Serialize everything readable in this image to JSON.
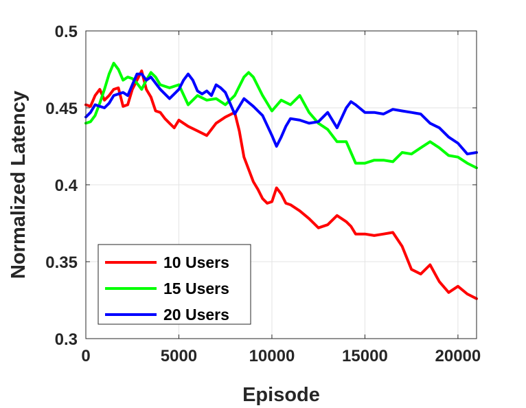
{
  "chart_data": {
    "type": "line",
    "xlabel": "Episode",
    "ylabel": "Normalized Latency",
    "xlim": [
      0,
      21000
    ],
    "ylim": [
      0.3,
      0.5
    ],
    "xticks": [
      0,
      5000,
      10000,
      15000,
      20000
    ],
    "yticks": [
      0.3,
      0.35,
      0.4,
      0.45,
      0.5
    ],
    "xtick_labels": [
      "0",
      "5000",
      "10000",
      "15000",
      "20000"
    ],
    "ytick_labels": [
      "0.3",
      "0.35",
      "0.4",
      "0.45",
      "0.5"
    ],
    "grid": true,
    "legend_position": "bottom-left",
    "series": [
      {
        "name": "10 Users",
        "color": "#ff0000",
        "x": [
          0,
          250,
          500,
          750,
          1000,
          1250,
          1500,
          1750,
          2000,
          2250,
          2500,
          2750,
          3000,
          3250,
          3500,
          3750,
          4000,
          4250,
          4500,
          4750,
          5000,
          5500,
          6000,
          6500,
          7000,
          7500,
          8000,
          8250,
          8500,
          8750,
          9000,
          9250,
          9500,
          9750,
          10000,
          10250,
          10500,
          10750,
          11000,
          11500,
          12000,
          12500,
          13000,
          13500,
          14000,
          14250,
          14500,
          15000,
          15500,
          16000,
          16500,
          17000,
          17500,
          18000,
          18500,
          19000,
          19500,
          20000,
          20500,
          21000
        ],
        "y": [
          0.452,
          0.451,
          0.458,
          0.462,
          0.455,
          0.458,
          0.462,
          0.463,
          0.451,
          0.452,
          0.462,
          0.468,
          0.474,
          0.462,
          0.457,
          0.448,
          0.447,
          0.443,
          0.44,
          0.437,
          0.442,
          0.438,
          0.435,
          0.432,
          0.44,
          0.444,
          0.447,
          0.435,
          0.418,
          0.41,
          0.402,
          0.397,
          0.391,
          0.388,
          0.389,
          0.398,
          0.394,
          0.388,
          0.387,
          0.383,
          0.378,
          0.372,
          0.374,
          0.38,
          0.376,
          0.373,
          0.368,
          0.368,
          0.367,
          0.368,
          0.369,
          0.36,
          0.345,
          0.342,
          0.348,
          0.337,
          0.33,
          0.334,
          0.329,
          0.326
        ]
      },
      {
        "name": "15 Users",
        "color": "#00ff00",
        "x": [
          0,
          250,
          500,
          750,
          1000,
          1250,
          1500,
          1750,
          2000,
          2250,
          2500,
          2750,
          3000,
          3250,
          3500,
          3750,
          4000,
          4500,
          5000,
          5500,
          6000,
          6500,
          7000,
          7500,
          8000,
          8500,
          8750,
          9000,
          9500,
          10000,
          10500,
          11000,
          11500,
          12000,
          12500,
          13000,
          13500,
          14000,
          14500,
          15000,
          15500,
          16000,
          16500,
          17000,
          17500,
          18000,
          18500,
          19000,
          19500,
          20000,
          20500,
          21000
        ],
        "y": [
          0.44,
          0.441,
          0.445,
          0.453,
          0.462,
          0.472,
          0.479,
          0.475,
          0.468,
          0.47,
          0.469,
          0.466,
          0.462,
          0.468,
          0.473,
          0.47,
          0.465,
          0.463,
          0.465,
          0.452,
          0.458,
          0.455,
          0.456,
          0.452,
          0.458,
          0.47,
          0.473,
          0.47,
          0.458,
          0.448,
          0.455,
          0.452,
          0.458,
          0.447,
          0.44,
          0.436,
          0.428,
          0.428,
          0.414,
          0.414,
          0.416,
          0.416,
          0.415,
          0.421,
          0.42,
          0.424,
          0.428,
          0.424,
          0.419,
          0.418,
          0.414,
          0.411
        ]
      },
      {
        "name": "20 Users",
        "color": "#0000ff",
        "x": [
          0,
          250,
          500,
          750,
          1000,
          1250,
          1500,
          1750,
          2000,
          2250,
          2500,
          2750,
          3000,
          3250,
          3500,
          4000,
          4500,
          5000,
          5250,
          5500,
          5750,
          6000,
          6250,
          6500,
          6750,
          7000,
          7250,
          7500,
          8000,
          8500,
          9000,
          9500,
          10000,
          10250,
          10500,
          10750,
          11000,
          11500,
          12000,
          12500,
          13000,
          13500,
          14000,
          14250,
          14500,
          15000,
          15500,
          16000,
          16500,
          17000,
          17500,
          18000,
          18500,
          19000,
          19500,
          20000,
          20500,
          21000
        ],
        "y": [
          0.444,
          0.447,
          0.452,
          0.451,
          0.45,
          0.453,
          0.458,
          0.459,
          0.46,
          0.458,
          0.465,
          0.472,
          0.472,
          0.468,
          0.47,
          0.462,
          0.456,
          0.462,
          0.468,
          0.472,
          0.468,
          0.461,
          0.459,
          0.461,
          0.458,
          0.465,
          0.463,
          0.46,
          0.446,
          0.456,
          0.451,
          0.445,
          0.432,
          0.425,
          0.431,
          0.438,
          0.443,
          0.442,
          0.44,
          0.441,
          0.447,
          0.437,
          0.45,
          0.454,
          0.452,
          0.447,
          0.447,
          0.446,
          0.449,
          0.448,
          0.447,
          0.446,
          0.44,
          0.437,
          0.431,
          0.427,
          0.42,
          0.421
        ]
      }
    ]
  }
}
